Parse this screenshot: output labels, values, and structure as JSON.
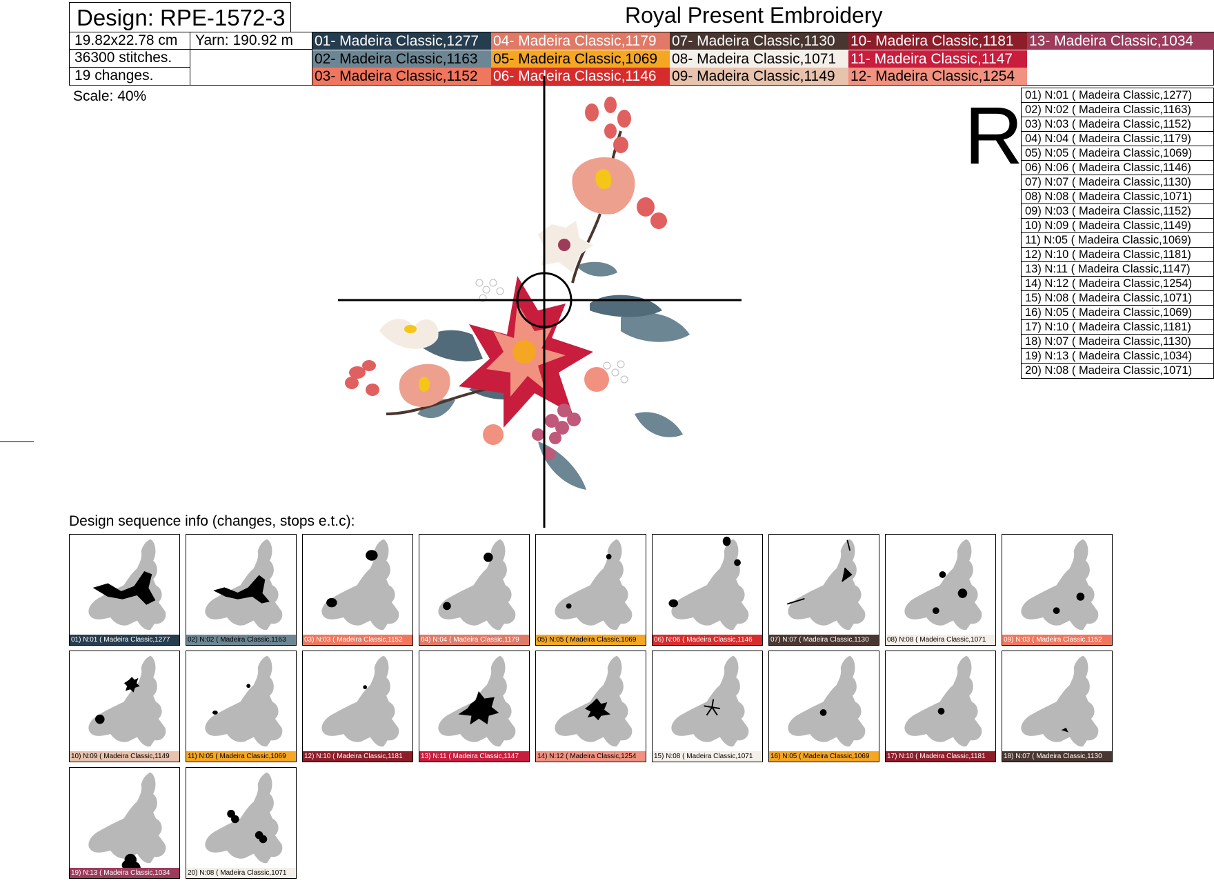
{
  "header": {
    "design_label": "Design: RPE-1572-3",
    "company": "Royal Present Embroidery",
    "size": "19.82x22.78 cm",
    "yarn": "Yarn: 190.92 m",
    "stitches": "36300 stitches.",
    "changes": "19 changes.",
    "scale": "Scale: 40%"
  },
  "logo_letter": "R",
  "palette": [
    {
      "label": "01- Madeira Classic,1277",
      "bg": "#263c4f",
      "fg": "#ffffff"
    },
    {
      "label": "02- Madeira Classic,1163",
      "bg": "#6c8693",
      "fg": "#000000"
    },
    {
      "label": "03- Madeira Classic,1152",
      "bg": "#f0765e",
      "fg": "#000000"
    },
    {
      "label": "04- Madeira Classic,1179",
      "bg": "#e07a66",
      "fg": "#ffffff"
    },
    {
      "label": "05- Madeira Classic,1069",
      "bg": "#f5a623",
      "fg": "#000000"
    },
    {
      "label": "06- Madeira Classic,1146",
      "bg": "#d72c2c",
      "fg": "#ffffff"
    },
    {
      "label": "07- Madeira Classic,1130",
      "bg": "#4a3630",
      "fg": "#ffffff"
    },
    {
      "label": "08- Madeira Classic,1071",
      "bg": "#f4efe8",
      "fg": "#000000"
    },
    {
      "label": "09- Madeira Classic,1149",
      "bg": "#e7c2ad",
      "fg": "#000000"
    },
    {
      "label": "10- Madeira Classic,1181",
      "bg": "#8e1d2a",
      "fg": "#ffffff"
    },
    {
      "label": "11- Madeira Classic,1147",
      "bg": "#c81d3d",
      "fg": "#ffffff"
    },
    {
      "label": "12- Madeira Classic,1254",
      "bg": "#f19180",
      "fg": "#000000"
    },
    {
      "label": "13- Madeira Classic,1034",
      "bg": "#9c3b5a",
      "fg": "#ffffff"
    }
  ],
  "sequence": [
    "01) N:01 ( Madeira Classic,1277)",
    "02) N:02 ( Madeira Classic,1163)",
    "03) N:03 ( Madeira Classic,1152)",
    "04) N:04 ( Madeira Classic,1179)",
    "05) N:05 ( Madeira Classic,1069)",
    "06) N:06 ( Madeira Classic,1146)",
    "07) N:07 ( Madeira Classic,1130)",
    "08) N:08 ( Madeira Classic,1071)",
    "09) N:03 ( Madeira Classic,1152)",
    "10) N:09 ( Madeira Classic,1149)",
    "11) N:05 ( Madeira Classic,1069)",
    "12) N:10 ( Madeira Classic,1181)",
    "13) N:11 ( Madeira Classic,1147)",
    "14) N:12 ( Madeira Classic,1254)",
    "15) N:08 ( Madeira Classic,1071)",
    "16) N:05 ( Madeira Classic,1069)",
    "17) N:10 ( Madeira Classic,1181)",
    "18) N:07 ( Madeira Classic,1130)",
    "19) N:13 ( Madeira Classic,1034)",
    "20) N:08 ( Madeira Classic,1071)"
  ],
  "sequence_title": "Design sequence info (changes, stops e.t.c):",
  "thumbnails": [
    {
      "caption": "01) N:01 ( Madeira Classic,1277",
      "bg": "#263c4f",
      "fg": "#ffffff"
    },
    {
      "caption": "02) N:02 ( Madeira Classic,1163",
      "bg": "#6c8693",
      "fg": "#000000"
    },
    {
      "caption": "03) N:03 ( Madeira Classic,1152",
      "bg": "#f0765e",
      "fg": "#ffffff"
    },
    {
      "caption": "04) N:04 ( Madeira Classic,1179",
      "bg": "#e07a66",
      "fg": "#ffffff"
    },
    {
      "caption": "05) N:05 ( Madeira Classic,1069",
      "bg": "#f5a623",
      "fg": "#000000"
    },
    {
      "caption": "06) N:06 ( Madeira Classic,1146",
      "bg": "#d72c2c",
      "fg": "#ffffff"
    },
    {
      "caption": "07) N:07 ( Madeira Classic,1130",
      "bg": "#4a3630",
      "fg": "#ffffff"
    },
    {
      "caption": "08) N:08 ( Madeira Classic,1071",
      "bg": "#f4efe8",
      "fg": "#000000"
    },
    {
      "caption": "09) N:03 ( Madeira Classic,1152",
      "bg": "#f0765e",
      "fg": "#ffffff"
    },
    {
      "caption": "10) N:09 ( Madeira Classic,1149",
      "bg": "#e7c2ad",
      "fg": "#000000"
    },
    {
      "caption": "11) N:05 ( Madeira Classic,1069",
      "bg": "#f5a623",
      "fg": "#000000"
    },
    {
      "caption": "12) N:10 ( Madeira Classic,1181",
      "bg": "#8e1d2a",
      "fg": "#ffffff"
    },
    {
      "caption": "13) N:11 ( Madeira Classic,1147",
      "bg": "#c81d3d",
      "fg": "#ffffff"
    },
    {
      "caption": "14) N:12 ( Madeira Classic,1254",
      "bg": "#f19180",
      "fg": "#000000"
    },
    {
      "caption": "15) N:08 ( Madeira Classic,1071",
      "bg": "#f4efe8",
      "fg": "#000000"
    },
    {
      "caption": "16) N:05 ( Madeira Classic,1069",
      "bg": "#f5a623",
      "fg": "#000000"
    },
    {
      "caption": "17) N:10 ( Madeira Classic,1181",
      "bg": "#8e1d2a",
      "fg": "#ffffff"
    },
    {
      "caption": "18) N:07 ( Madeira Classic,1130",
      "bg": "#4a3630",
      "fg": "#ffffff"
    },
    {
      "caption": "19) N:13 ( Madeira Classic,1034",
      "bg": "#9c3b5a",
      "fg": "#ffffff"
    },
    {
      "caption": "20) N:08 ( Madeira Classic,1071",
      "bg": "#f4efe8",
      "fg": "#000000"
    }
  ]
}
